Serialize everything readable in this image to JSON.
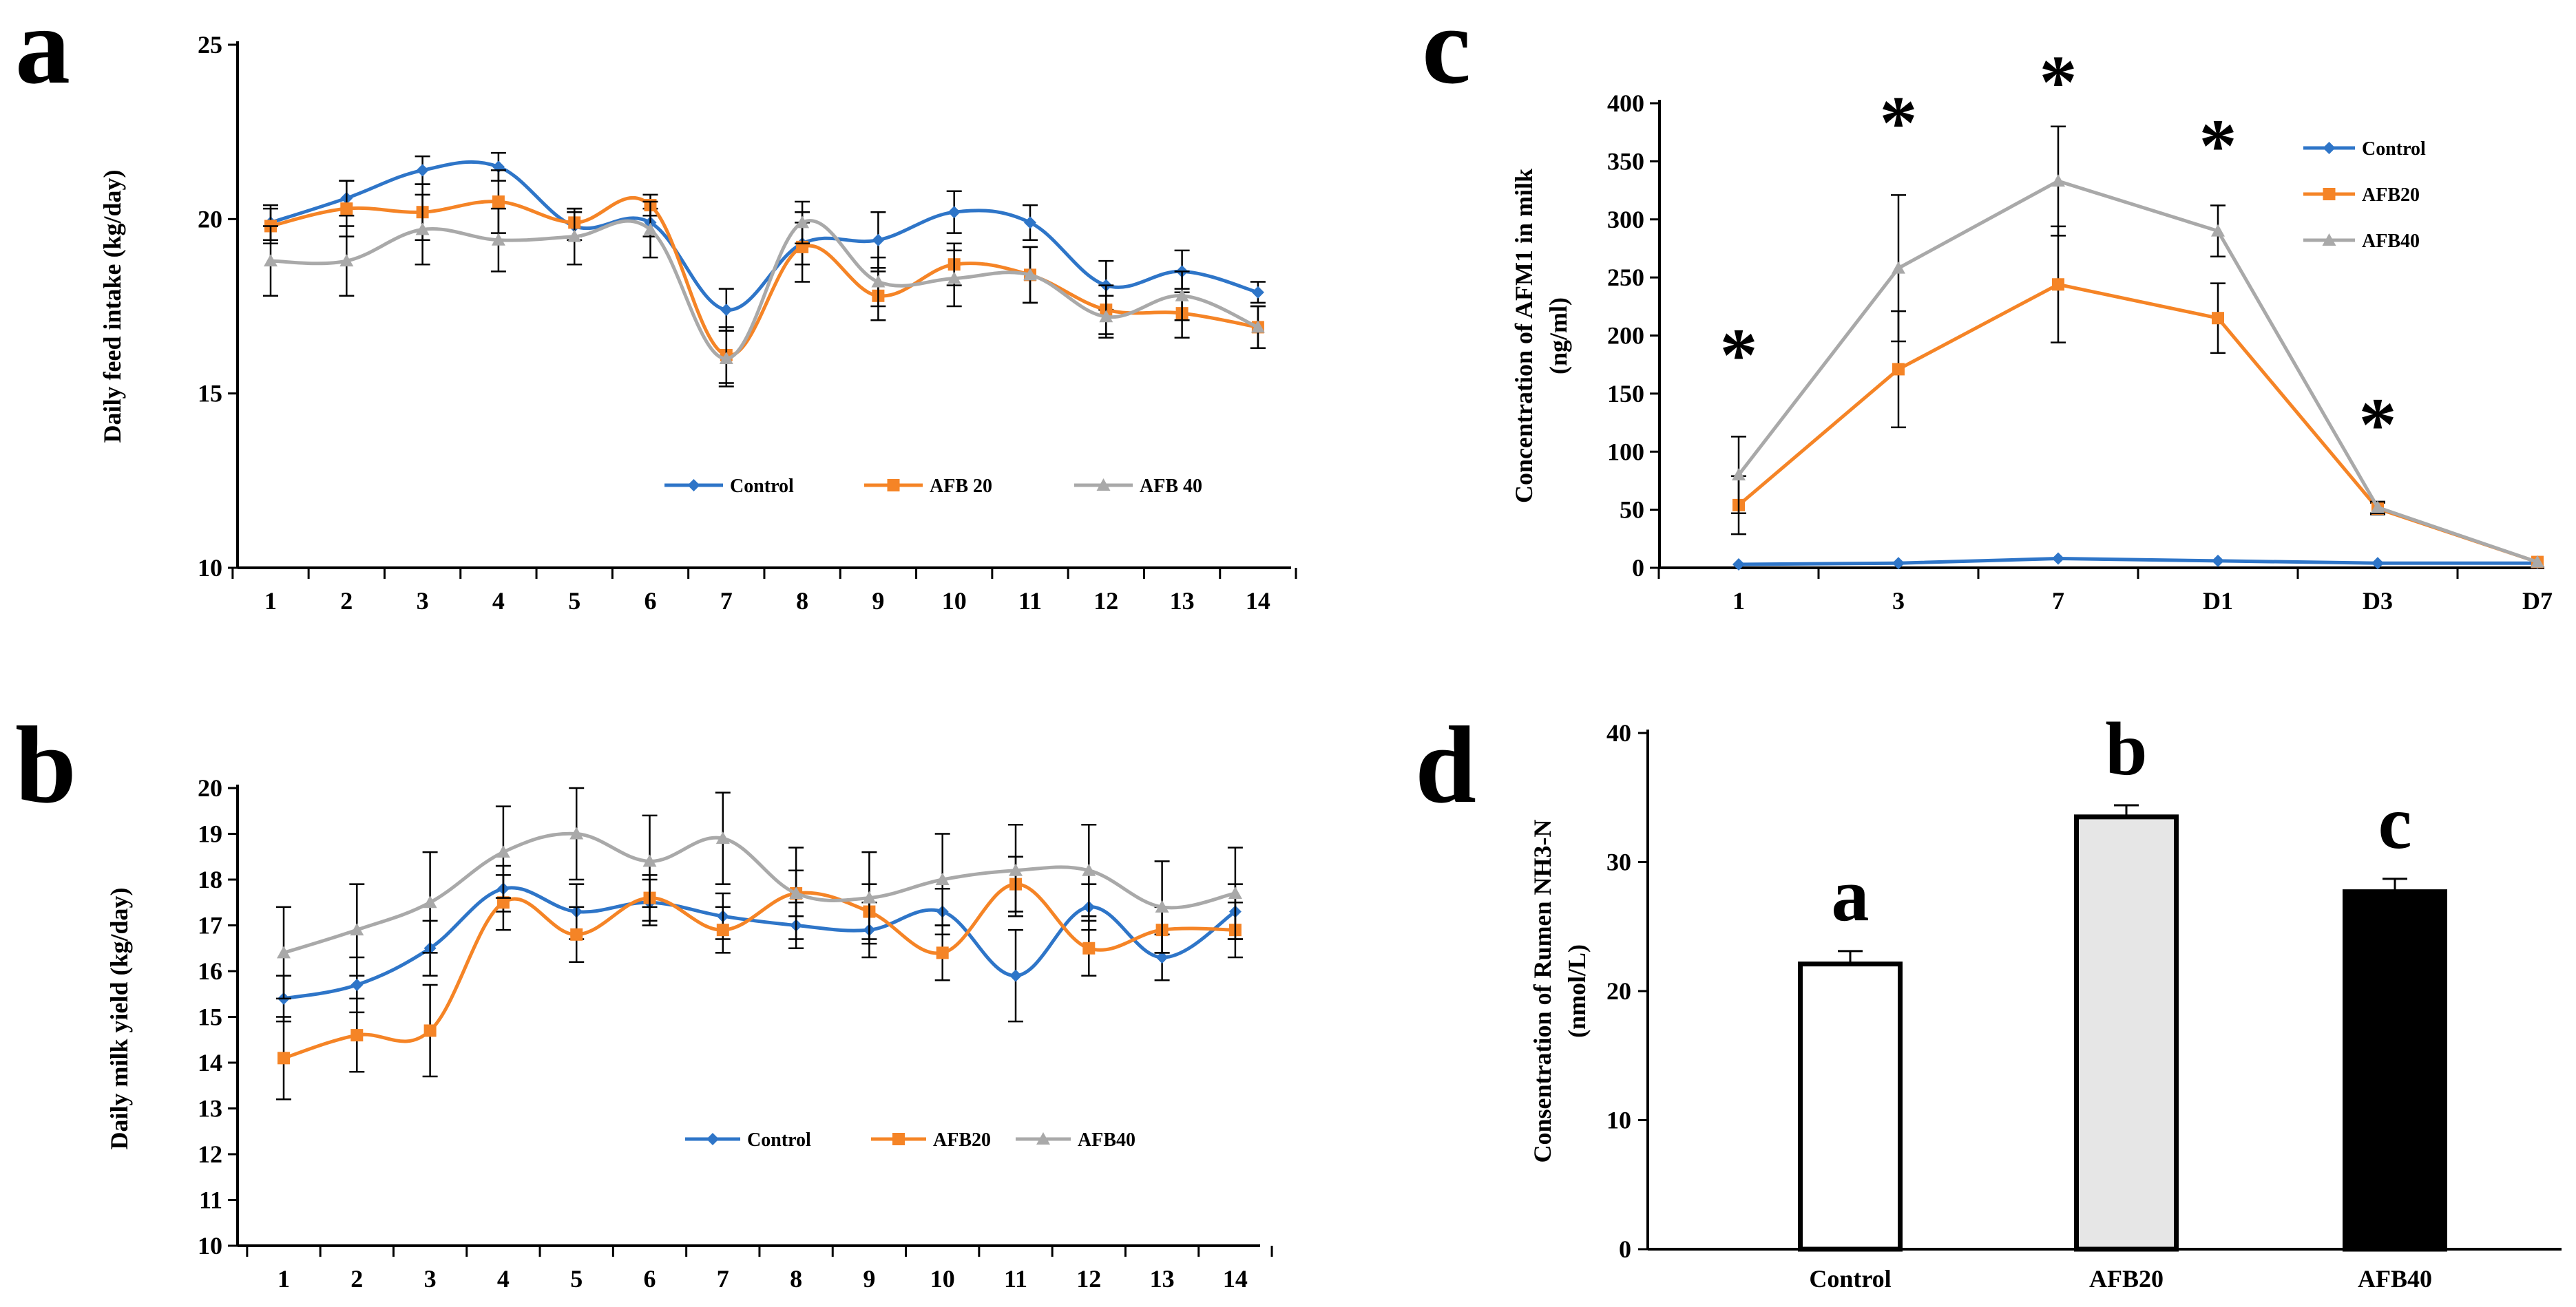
{
  "colors": {
    "control": "#2E75C8",
    "afb20": "#F58426",
    "afb40": "#A9A9A9"
  },
  "chart_data": [
    {
      "id": "a",
      "panel_label": "a",
      "type": "line",
      "title": "",
      "xlabel": "",
      "ylabel": "Daily feed intake (kg/day)",
      "x": [
        "1",
        "2",
        "3",
        "4",
        "5",
        "6",
        "7",
        "8",
        "9",
        "10",
        "11",
        "12",
        "13",
        "14"
      ],
      "ylim": [
        10,
        25
      ],
      "yticks": [
        "10",
        "15",
        "20",
        "25"
      ],
      "legend_position": "bottom-right",
      "series": [
        {
          "name": "Control",
          "color_key": "control",
          "marker": "diamond",
          "values": [
            19.9,
            20.6,
            21.4,
            21.5,
            19.8,
            19.9,
            17.4,
            19.3,
            19.4,
            20.2,
            19.9,
            18.1,
            18.5,
            17.9
          ],
          "errors": [
            0.5,
            0.5,
            0.4,
            0.4,
            0.4,
            0.4,
            0.6,
            0.6,
            0.8,
            0.6,
            0.5,
            0.7,
            0.6,
            0.3
          ]
        },
        {
          "name": "AFB 20",
          "color_key": "afb20",
          "marker": "square",
          "values": [
            19.8,
            20.3,
            20.2,
            20.5,
            19.9,
            20.4,
            16.1,
            19.2,
            17.8,
            18.7,
            18.4,
            17.4,
            17.3,
            16.9
          ],
          "errors": [
            0.5,
            0.8,
            0.8,
            0.9,
            0.4,
            0.3,
            0.8,
            1.0,
            0.7,
            0.6,
            0.8,
            0.7,
            0.7,
            0.6
          ]
        },
        {
          "name": "AFB 40",
          "color_key": "afb40",
          "marker": "triangle",
          "values": [
            18.8,
            18.8,
            19.7,
            19.4,
            19.5,
            19.7,
            16.0,
            19.9,
            18.2,
            18.3,
            18.4,
            17.2,
            17.8,
            16.9
          ],
          "errors": [
            1.0,
            1.0,
            1.0,
            0.9,
            0.8,
            0.8,
            0.8,
            0.6,
            0.7,
            0.8,
            0.8,
            0.6,
            0.7,
            0.6
          ]
        }
      ]
    },
    {
      "id": "b",
      "panel_label": "b",
      "type": "line",
      "title": "",
      "xlabel": "",
      "ylabel": "Daily milk yield (kg/day)",
      "x": [
        "1",
        "2",
        "3",
        "4",
        "5",
        "6",
        "7",
        "8",
        "9",
        "10",
        "11",
        "12",
        "13",
        "14"
      ],
      "ylim": [
        10,
        20
      ],
      "yticks": [
        "10",
        "11",
        "12",
        "13",
        "14",
        "15",
        "16",
        "17",
        "18",
        "19",
        "20"
      ],
      "legend_position": "bottom-right",
      "series": [
        {
          "name": "Control",
          "color_key": "control",
          "marker": "diamond",
          "values": [
            15.4,
            15.7,
            16.5,
            17.8,
            17.3,
            17.5,
            17.2,
            17.0,
            16.9,
            17.3,
            15.9,
            17.4,
            16.3,
            17.3
          ],
          "errors": [
            0.5,
            0.6,
            0.6,
            0.5,
            0.6,
            0.5,
            0.5,
            0.5,
            0.6,
            0.5,
            1.0,
            0.5,
            0.5,
            0.6
          ]
        },
        {
          "name": "AFB20",
          "color_key": "afb20",
          "marker": "square",
          "values": [
            14.1,
            14.6,
            14.7,
            17.5,
            16.8,
            17.6,
            16.9,
            17.7,
            17.3,
            16.4,
            17.9,
            16.5,
            16.9,
            16.9
          ],
          "errors": [
            0.9,
            0.8,
            1.0,
            0.6,
            0.6,
            0.5,
            0.5,
            0.5,
            0.6,
            0.6,
            0.6,
            0.6,
            0.5,
            0.6
          ]
        },
        {
          "name": "AFB40",
          "color_key": "afb40",
          "marker": "triangle",
          "values": [
            16.4,
            16.9,
            17.5,
            18.6,
            19.0,
            18.4,
            18.9,
            17.7,
            17.6,
            18.0,
            18.2,
            18.2,
            17.4,
            17.7
          ],
          "errors": [
            1.0,
            1.0,
            1.1,
            1.0,
            1.0,
            1.0,
            1.0,
            1.0,
            1.0,
            1.0,
            1.0,
            1.0,
            1.0,
            1.0
          ]
        }
      ]
    },
    {
      "id": "c",
      "panel_label": "c",
      "type": "line",
      "title": "",
      "xlabel": "",
      "ylabel": "Concentration of AFM1 in milk (ng/ml)",
      "ylabel_line1": "Concentration of AFM1 in milk",
      "ylabel_line2": "(ng/ml)",
      "x": [
        "1",
        "3",
        "7",
        "D1",
        "D3",
        "D7"
      ],
      "ylim": [
        0,
        400
      ],
      "yticks": [
        "0",
        "50",
        "100",
        "150",
        "200",
        "250",
        "300",
        "350",
        "400"
      ],
      "legend_position": "top-right",
      "annotations": [
        "*",
        "*",
        "*",
        "*",
        "*"
      ],
      "annotation_x_index": [
        0,
        1,
        2,
        3,
        4
      ],
      "annotation_y": [
        190,
        390,
        425,
        370,
        130
      ],
      "series": [
        {
          "name": "Control",
          "color_key": "control",
          "marker": "diamond",
          "values": [
            3,
            4,
            8,
            6,
            4,
            4
          ],
          "errors": [
            0,
            0,
            0,
            0,
            0,
            0
          ]
        },
        {
          "name": "AFB20",
          "color_key": "afb20",
          "marker": "square",
          "values": [
            54,
            171,
            244,
            215,
            51,
            5
          ],
          "errors": [
            25,
            50,
            50,
            30,
            5,
            0
          ]
        },
        {
          "name": "AFB40",
          "color_key": "afb40",
          "marker": "triangle",
          "values": [
            80,
            258,
            333,
            290,
            52,
            5
          ],
          "errors": [
            33,
            63,
            47,
            22,
            5,
            0
          ]
        }
      ]
    },
    {
      "id": "d",
      "panel_label": "d",
      "type": "bar",
      "title": "",
      "xlabel": "",
      "ylabel": "Consentration of Rumen NH3-N (nmol/L)",
      "ylabel_line1": "Consentration of Rumen NH3-N",
      "ylabel_line2": "(nmol/L)",
      "categories": [
        "Control",
        "AFB20",
        "AFB40"
      ],
      "values": [
        22.1,
        33.5,
        27.7
      ],
      "errors": [
        1.0,
        0.9,
        1.0
      ],
      "fills": [
        "#FFFFFF",
        "#E6E6E6",
        "#000000"
      ],
      "significance": [
        "a",
        "b",
        "c"
      ],
      "ylim": [
        0,
        40
      ],
      "yticks": [
        "0",
        "10",
        "20",
        "30",
        "40"
      ]
    }
  ]
}
